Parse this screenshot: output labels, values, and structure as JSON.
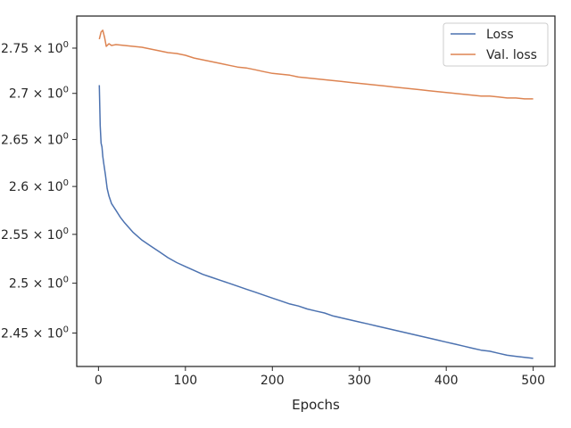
{
  "chart_data": {
    "type": "line",
    "xlabel": "Epochs",
    "ylabel": "",
    "yscale": "log",
    "xlim": [
      -25,
      525
    ],
    "ylim": [
      2.417,
      2.786
    ],
    "xticks": [
      0,
      100,
      200,
      300,
      400,
      500
    ],
    "yticks": [
      {
        "value": 2.45,
        "mantissa": "2.45",
        "base": "10",
        "exp": "0"
      },
      {
        "value": 2.5,
        "mantissa": "2.5",
        "base": "10",
        "exp": "0"
      },
      {
        "value": 2.55,
        "mantissa": "2.55",
        "base": "10",
        "exp": "0"
      },
      {
        "value": 2.6,
        "mantissa": "2.6",
        "base": "10",
        "exp": "0"
      },
      {
        "value": 2.65,
        "mantissa": "2.65",
        "base": "10",
        "exp": "0"
      },
      {
        "value": 2.7,
        "mantissa": "2.7",
        "base": "10",
        "exp": "0"
      },
      {
        "value": 2.75,
        "mantissa": "2.75",
        "base": "10",
        "exp": "0"
      }
    ],
    "grid": false,
    "legend_position": "top-right",
    "series": [
      {
        "name": "Loss",
        "color": "#4c72b0",
        "x": [
          1,
          2,
          3,
          4,
          5,
          6,
          8,
          10,
          12,
          15,
          20,
          25,
          30,
          40,
          50,
          60,
          70,
          80,
          90,
          100,
          110,
          120,
          130,
          140,
          150,
          160,
          170,
          180,
          190,
          200,
          210,
          220,
          230,
          240,
          250,
          260,
          270,
          280,
          290,
          300,
          310,
          320,
          330,
          340,
          350,
          360,
          370,
          380,
          390,
          400,
          410,
          420,
          430,
          440,
          450,
          460,
          470,
          480,
          490,
          500
        ],
        "values": [
          2.709,
          2.665,
          2.646,
          2.642,
          2.632,
          2.625,
          2.612,
          2.598,
          2.59,
          2.582,
          2.575,
          2.568,
          2.562,
          2.552,
          2.544,
          2.538,
          2.532,
          2.526,
          2.521,
          2.517,
          2.513,
          2.509,
          2.506,
          2.503,
          2.5,
          2.497,
          2.494,
          2.491,
          2.488,
          2.485,
          2.482,
          2.479,
          2.477,
          2.474,
          2.472,
          2.47,
          2.467,
          2.465,
          2.463,
          2.461,
          2.459,
          2.457,
          2.455,
          2.453,
          2.451,
          2.449,
          2.447,
          2.445,
          2.443,
          2.441,
          2.439,
          2.437,
          2.435,
          2.433,
          2.432,
          2.43,
          2.428,
          2.427,
          2.426,
          2.425
        ]
      },
      {
        "name": "Val. loss",
        "color": "#dd8452",
        "x": [
          1,
          3,
          5,
          7,
          9,
          12,
          15,
          20,
          30,
          40,
          50,
          60,
          70,
          80,
          90,
          100,
          110,
          120,
          130,
          140,
          150,
          160,
          170,
          180,
          190,
          200,
          210,
          220,
          230,
          240,
          250,
          260,
          270,
          280,
          290,
          300,
          310,
          320,
          330,
          340,
          350,
          360,
          370,
          380,
          390,
          400,
          410,
          420,
          430,
          440,
          450,
          460,
          470,
          480,
          490,
          500
        ],
        "values": [
          2.76,
          2.768,
          2.77,
          2.762,
          2.752,
          2.755,
          2.753,
          2.754,
          2.753,
          2.752,
          2.751,
          2.749,
          2.747,
          2.745,
          2.744,
          2.742,
          2.739,
          2.737,
          2.735,
          2.733,
          2.731,
          2.729,
          2.728,
          2.726,
          2.724,
          2.722,
          2.721,
          2.72,
          2.718,
          2.717,
          2.716,
          2.715,
          2.714,
          2.713,
          2.712,
          2.711,
          2.71,
          2.709,
          2.708,
          2.707,
          2.706,
          2.705,
          2.704,
          2.703,
          2.702,
          2.701,
          2.7,
          2.699,
          2.698,
          2.697,
          2.697,
          2.696,
          2.695,
          2.695,
          2.694,
          2.694
        ]
      }
    ]
  }
}
